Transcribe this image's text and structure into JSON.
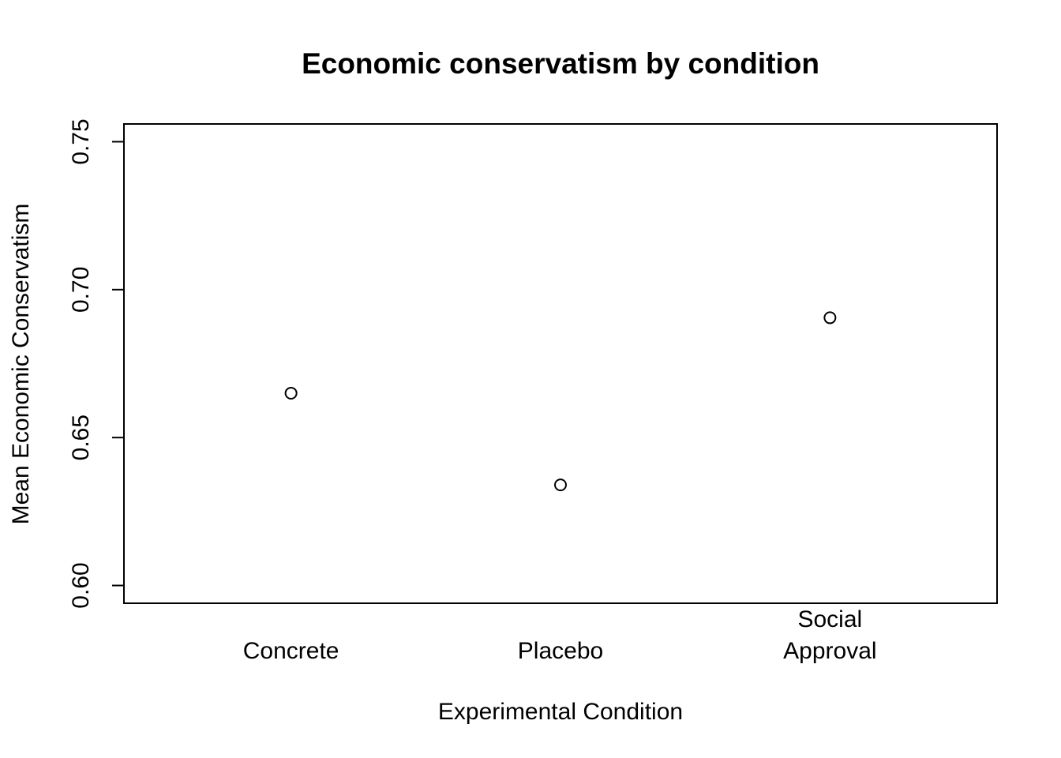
{
  "chart_data": {
    "type": "scatter",
    "title": "Economic conservatism by condition",
    "xlabel": "Experimental Condition",
    "ylabel": "Mean Economic Conservatism",
    "categories": [
      "Concrete",
      "Placebo",
      "Social\nApproval"
    ],
    "values": [
      0.665,
      0.634,
      0.6905
    ],
    "ylim": [
      0.594,
      0.756
    ],
    "yticks": [
      0.6,
      0.65,
      0.7,
      0.75
    ],
    "ytick_labels": [
      "0.60",
      "0.65",
      "0.70",
      "0.75"
    ],
    "grid": false,
    "marker": "open-circle",
    "colors": {
      "marker": "#000000",
      "axis": "#000000",
      "background": "#ffffff"
    }
  }
}
